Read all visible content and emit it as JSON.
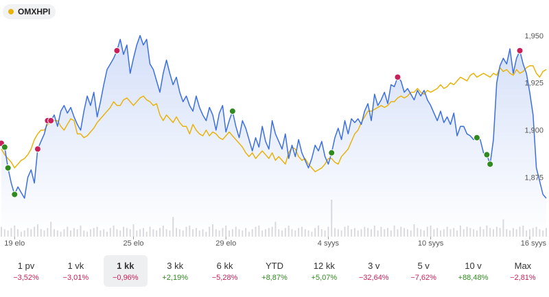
{
  "legend": {
    "symbol": "OMXHPI",
    "color": "#e8b30b"
  },
  "colors": {
    "main_line": "#3b6fe0",
    "compare_line": "#e8b30b",
    "neg": "#c8205a",
    "pos": "#2f8a1f"
  },
  "chart_data": {
    "type": "line",
    "ylim": [
      1860,
      1955
    ],
    "yticks": [
      1950,
      1925,
      1900,
      1875
    ],
    "x_labels": [
      "19 elo",
      "25 elo",
      "29 elo",
      "4 syys",
      "10 syys",
      "16 syys"
    ],
    "x_label_idx": [
      4,
      40,
      68,
      99,
      130,
      160
    ],
    "n_points": 166,
    "series": [
      {
        "color": "#3b6fe0",
        "values": [
          1893,
          1891,
          1880,
          1872,
          1866,
          1870,
          1867,
          1864,
          1875,
          1879,
          1872,
          1890,
          1894,
          1898,
          1905,
          1905,
          1908,
          1902,
          1910,
          1913,
          1909,
          1912,
          1907,
          1903,
          1900,
          1910,
          1918,
          1913,
          1920,
          1907,
          1915,
          1924,
          1932,
          1935,
          1938,
          1942,
          1948,
          1940,
          1945,
          1930,
          1938,
          1945,
          1950,
          1945,
          1948,
          1935,
          1932,
          1926,
          1920,
          1930,
          1937,
          1930,
          1924,
          1928,
          1920,
          1915,
          1918,
          1913,
          1910,
          1918,
          1912,
          1908,
          1905,
          1912,
          1908,
          1900,
          1909,
          1913,
          1899,
          1905,
          1910,
          1902,
          1896,
          1905,
          1901,
          1895,
          1889,
          1896,
          1891,
          1902,
          1894,
          1890,
          1905,
          1898,
          1894,
          1890,
          1898,
          1885,
          1892,
          1886,
          1895,
          1888,
          1884,
          1880,
          1885,
          1892,
          1889,
          1894,
          1886,
          1882,
          1888,
          1896,
          1901,
          1895,
          1905,
          1898,
          1906,
          1904,
          1906,
          1903,
          1910,
          1914,
          1905,
          1919,
          1913,
          1916,
          1920,
          1914,
          1924,
          1923,
          1928,
          1926,
          1920,
          1922,
          1919,
          1916,
          1921,
          1918,
          1921,
          1916,
          1913,
          1909,
          1905,
          1910,
          1904,
          1907,
          1903,
          1909,
          1897,
          1902,
          1902,
          1898,
          1897,
          1895,
          1896,
          1895,
          1888,
          1887,
          1882,
          1895,
          1925,
          1934,
          1938,
          1935,
          1943,
          1930,
          1938,
          1942,
          1935,
          1930,
          1920,
          1908,
          1880,
          1873,
          1866,
          1864
        ],
        "markers": [
          {
            "i": 0,
            "kind": "sell"
          },
          {
            "i": 1,
            "kind": "buy"
          },
          {
            "i": 2,
            "kind": "buy"
          },
          {
            "i": 4,
            "kind": "buy"
          },
          {
            "i": 11,
            "kind": "sell"
          },
          {
            "i": 14,
            "kind": "sell"
          },
          {
            "i": 15,
            "kind": "sell"
          },
          {
            "i": 35,
            "kind": "sell"
          },
          {
            "i": 70,
            "kind": "buy"
          },
          {
            "i": 100,
            "kind": "buy"
          },
          {
            "i": 120,
            "kind": "sell"
          },
          {
            "i": 144,
            "kind": "buy"
          },
          {
            "i": 147,
            "kind": "buy"
          },
          {
            "i": 148,
            "kind": "buy"
          },
          {
            "i": 157,
            "kind": "sell"
          }
        ]
      },
      {
        "color": "#e8b30b",
        "values": [
          1890,
          1887,
          1885,
          1883,
          1880,
          1882,
          1884,
          1885,
          1887,
          1890,
          1895,
          1898,
          1900,
          1900,
          1903,
          1904,
          1905,
          1905,
          1902,
          1900,
          1903,
          1906,
          1905,
          1898,
          1898,
          1896,
          1897,
          1899,
          1901,
          1904,
          1906,
          1908,
          1910,
          1912,
          1915,
          1913,
          1913,
          1916,
          1917,
          1915,
          1913,
          1915,
          1917,
          1918,
          1916,
          1915,
          1913,
          1914,
          1908,
          1905,
          1908,
          1906,
          1904,
          1907,
          1904,
          1902,
          1902,
          1898,
          1903,
          1900,
          1898,
          1897,
          1900,
          1897,
          1899,
          1898,
          1896,
          1895,
          1897,
          1899,
          1897,
          1895,
          1893,
          1891,
          1888,
          1886,
          1888,
          1885,
          1887,
          1889,
          1887,
          1885,
          1888,
          1884,
          1886,
          1884,
          1882,
          1888,
          1891,
          1890,
          1886,
          1884,
          1885,
          1882,
          1880,
          1878,
          1879,
          1880,
          1882,
          1885,
          1885,
          1883,
          1882,
          1886,
          1888,
          1890,
          1894,
          1898,
          1900,
          1904,
          1907,
          1910,
          1910,
          1911,
          1912,
          1913,
          1912,
          1913,
          1915,
          1915,
          1917,
          1918,
          1917,
          1918,
          1920,
          1920,
          1922,
          1920,
          1919,
          1921,
          1920,
          1921,
          1922,
          1924,
          1922,
          1923,
          1925,
          1924,
          1926,
          1928,
          1927,
          1926,
          1929,
          1930,
          1928,
          1929,
          1930,
          1929,
          1928,
          1930,
          1929,
          1933,
          1931,
          1932,
          1930,
          1929,
          1932,
          1930,
          1931,
          1933,
          1934,
          1934,
          1930,
          1928,
          1931,
          1932
        ]
      }
    ],
    "volume": [
      8,
      6,
      5,
      7,
      9,
      6,
      4,
      5,
      7,
      6,
      8,
      10,
      6,
      5,
      7,
      12,
      6,
      5,
      4,
      6,
      8,
      5,
      7,
      6,
      9,
      5,
      4,
      6,
      7,
      8,
      5,
      6,
      4,
      7,
      9,
      6,
      5,
      8,
      7,
      6,
      10,
      5,
      6,
      7,
      4,
      8,
      6,
      5,
      7,
      9,
      6,
      5,
      16,
      7,
      6,
      5,
      8,
      9,
      6,
      7,
      5,
      6,
      4,
      8,
      10,
      6,
      5,
      7,
      9,
      5,
      6,
      8,
      6,
      5,
      7,
      4,
      6,
      8,
      9,
      5,
      6,
      7,
      8,
      12,
      6,
      5,
      7,
      9,
      6,
      5,
      7,
      8,
      6,
      5,
      4,
      7,
      9,
      6,
      5,
      8,
      30,
      7,
      6,
      5,
      8,
      9,
      6,
      7,
      5,
      6,
      8,
      7,
      6,
      9,
      5,
      8,
      6,
      7,
      5,
      9,
      6,
      8,
      7,
      6,
      5,
      10,
      7,
      6,
      5,
      8,
      9,
      6,
      7,
      5,
      6,
      8,
      6,
      7,
      5,
      9,
      6,
      8,
      7,
      6,
      5,
      8,
      6,
      9,
      7,
      6,
      8,
      7,
      14,
      6,
      5,
      7,
      6,
      8,
      9,
      5,
      6,
      7,
      8,
      6,
      5,
      7
    ]
  },
  "periods": [
    {
      "label": "1 pv",
      "change": "−3,52%",
      "sign": "neg",
      "active": false
    },
    {
      "label": "1 vk",
      "change": "−3,01%",
      "sign": "neg",
      "active": false
    },
    {
      "label": "1 kk",
      "change": "−0,96%",
      "sign": "neg",
      "active": true
    },
    {
      "label": "3 kk",
      "change": "+2,19%",
      "sign": "pos",
      "active": false
    },
    {
      "label": "6 kk",
      "change": "−5,28%",
      "sign": "neg",
      "active": false
    },
    {
      "label": "YTD",
      "change": "+8,87%",
      "sign": "pos",
      "active": false
    },
    {
      "label": "12 kk",
      "change": "+5,07%",
      "sign": "pos",
      "active": false
    },
    {
      "label": "3 v",
      "change": "−32,64%",
      "sign": "neg",
      "active": false
    },
    {
      "label": "5 v",
      "change": "−7,62%",
      "sign": "neg",
      "active": false
    },
    {
      "label": "10 v",
      "change": "+88,48%",
      "sign": "pos",
      "active": false
    },
    {
      "label": "Max",
      "change": "−2,81%",
      "sign": "neg",
      "active": false
    }
  ]
}
